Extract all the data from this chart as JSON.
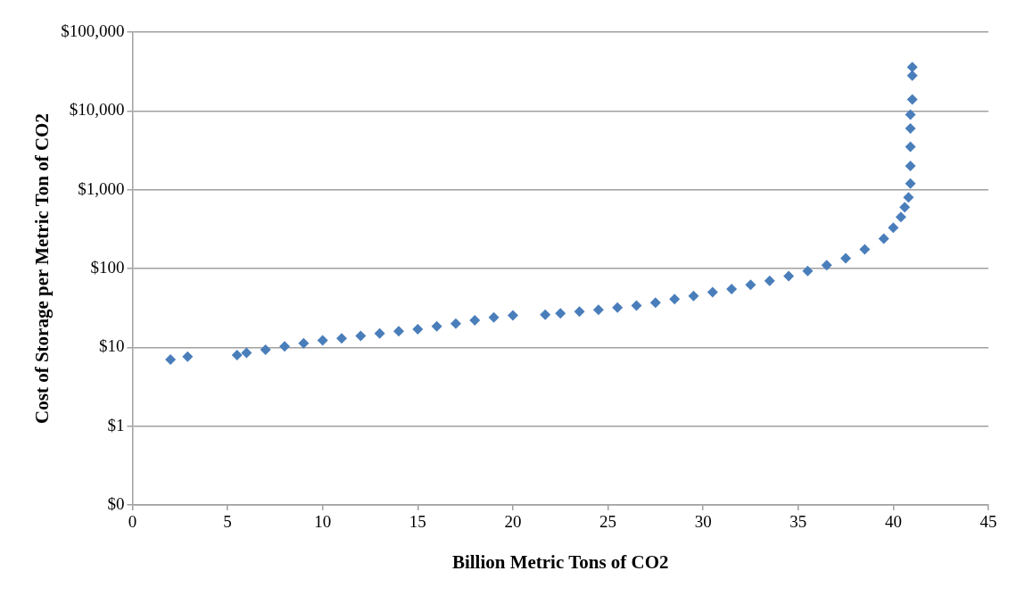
{
  "chart_data": {
    "type": "scatter",
    "xlabel": "Billion Metric Tons of CO2",
    "ylabel": "Cost of Storage per Metric Ton of CO2",
    "x": [
      2.0,
      2.9,
      5.5,
      6.0,
      7,
      8,
      9,
      10,
      11,
      12,
      13,
      14,
      15,
      16,
      17,
      18,
      19,
      20,
      21.7,
      22.5,
      23.5,
      24.5,
      25.5,
      26.5,
      27.5,
      28.5,
      29.5,
      30.5,
      31.5,
      32.5,
      33.5,
      34.5,
      35.5,
      36.5,
      37.5,
      38.5,
      39.5,
      40.0,
      40.4,
      40.6,
      40.8,
      40.9,
      40.9,
      40.9,
      40.9,
      40.9,
      41.0,
      41.0,
      41.0
    ],
    "series": [
      {
        "color": "#4a7ebb",
        "values": [
          7.0,
          7.6,
          8.0,
          8.5,
          9.3,
          10.3,
          11.3,
          12.3,
          13,
          14,
          15,
          16,
          17,
          18.5,
          20,
          22,
          24,
          25.5,
          26,
          27,
          28.5,
          30,
          32,
          34,
          37,
          41,
          45,
          50,
          55,
          62,
          70,
          80,
          93,
          110,
          135,
          175,
          240,
          330,
          450,
          600,
          800,
          1200,
          2000,
          3500,
          6000,
          9000,
          14000,
          28000,
          36000
        ]
      }
    ],
    "xlim": [
      0,
      45
    ],
    "xticks": [
      0,
      5,
      10,
      15,
      20,
      25,
      30,
      35,
      40,
      45
    ],
    "log": "y",
    "ylim": [
      0.1,
      100000
    ],
    "yticks": [
      {
        "value": 0.1,
        "label": "$0"
      },
      {
        "value": 1,
        "label": "$1"
      },
      {
        "value": 10,
        "label": "$10"
      },
      {
        "value": 100,
        "label": "$100"
      },
      {
        "value": 1000,
        "label": "$1,000"
      },
      {
        "value": 10000,
        "label": "$10,000"
      },
      {
        "value": 100000,
        "label": "$100,000"
      }
    ],
    "grid": "y",
    "legend": false,
    "marker": "diamond"
  }
}
